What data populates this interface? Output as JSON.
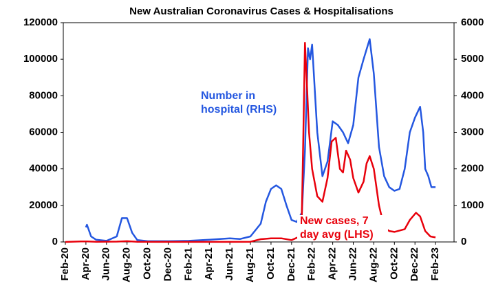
{
  "chart_data": {
    "type": "line",
    "title": "New Australian Coronavirus Cases & Hospitalisations",
    "annotations": [
      "Number in",
      "hospital (RHS)",
      "New cases, 7",
      "day avg (LHS)"
    ],
    "xlim": [
      -0.2,
      37.8
    ],
    "xticks": [
      {
        "value": 0,
        "label": "Feb-20"
      },
      {
        "value": 2,
        "label": "Apr-20"
      },
      {
        "value": 4,
        "label": "Jun-20"
      },
      {
        "value": 6,
        "label": "Aug-20"
      },
      {
        "value": 8,
        "label": "Oct-20"
      },
      {
        "value": 10,
        "label": "Dec-20"
      },
      {
        "value": 12,
        "label": "Feb-21"
      },
      {
        "value": 14,
        "label": "Apr-21"
      },
      {
        "value": 16,
        "label": "Jun-21"
      },
      {
        "value": 18,
        "label": "Aug-21"
      },
      {
        "value": 20,
        "label": "Oct-21"
      },
      {
        "value": 22,
        "label": "Dec-21"
      },
      {
        "value": 24,
        "label": "Feb-22"
      },
      {
        "value": 26,
        "label": "Apr-22"
      },
      {
        "value": 28,
        "label": "Jun-22"
      },
      {
        "value": 30,
        "label": "Aug-22"
      },
      {
        "value": 32,
        "label": "Oct-22"
      },
      {
        "value": 34,
        "label": "Dec-22"
      },
      {
        "value": 36,
        "label": "Feb-23"
      }
    ],
    "ylim": [
      0,
      120000
    ],
    "yticks": [
      0,
      20000,
      40000,
      60000,
      80000,
      100000,
      120000
    ],
    "y2lim": [
      0,
      6000
    ],
    "y2ticks": [
      0,
      1000,
      2000,
      3000,
      4000,
      5000,
      6000
    ],
    "series": [
      {
        "name": "Number in hospital (RHS)",
        "color": "#2457e0",
        "axis": "y2",
        "x": [
          2,
          2.1,
          2.5,
          3,
          4,
          5,
          5.5,
          6,
          6.5,
          7,
          8,
          10,
          12,
          14,
          16,
          17,
          18,
          19,
          19.5,
          20,
          20.5,
          21,
          21.5,
          22,
          22.5,
          23,
          23.3,
          23.6,
          23.8,
          24,
          24.5,
          25,
          25.5,
          26,
          26.5,
          27,
          27.5,
          28,
          28.5,
          29,
          29.6,
          30,
          30.5,
          31,
          31.5,
          32,
          32.5,
          33,
          33.5,
          34,
          34.5,
          34.8,
          35,
          35.3,
          35.6,
          36
        ],
        "values": [
          400,
          470,
          150,
          60,
          30,
          150,
          650,
          650,
          250,
          50,
          20,
          20,
          30,
          60,
          100,
          80,
          150,
          500,
          1100,
          1450,
          1550,
          1450,
          1000,
          600,
          550,
          800,
          2500,
          5300,
          5000,
          5400,
          3000,
          1800,
          2200,
          3300,
          3200,
          3000,
          2700,
          3200,
          4500,
          5000,
          5550,
          4600,
          2600,
          1800,
          1500,
          1400,
          1450,
          2000,
          3000,
          3400,
          3700,
          3000,
          2000,
          1800,
          1500,
          1500
        ]
      },
      {
        "name": "New cases, 7 day avg (LHS)",
        "color": "#e8000b",
        "axis": "y",
        "x": [
          0,
          1.5,
          2,
          3,
          5,
          6,
          7,
          9,
          16,
          18,
          19,
          20,
          21,
          22,
          22.8,
          23,
          23.15,
          23.3,
          23.5,
          23.7,
          24,
          24.5,
          25,
          25.5,
          25.9,
          26.3,
          26.7,
          27,
          27.3,
          27.7,
          28,
          28.5,
          29,
          29.3,
          29.6,
          30,
          30.5,
          31,
          31.5,
          32,
          33,
          33.5,
          34.1,
          34.5,
          35,
          35.5,
          36
        ],
        "values": [
          0,
          300,
          300,
          100,
          200,
          400,
          100,
          50,
          50,
          100,
          1500,
          2000,
          2000,
          1000,
          3000,
          15000,
          60000,
          109000,
          85000,
          60000,
          40000,
          25000,
          22000,
          35000,
          55000,
          57000,
          40000,
          38000,
          50000,
          45000,
          35000,
          27000,
          33000,
          43000,
          47000,
          40000,
          20000,
          8000,
          6000,
          5500,
          7000,
          12000,
          16000,
          14000,
          6000,
          3000,
          2500
        ]
      }
    ]
  }
}
